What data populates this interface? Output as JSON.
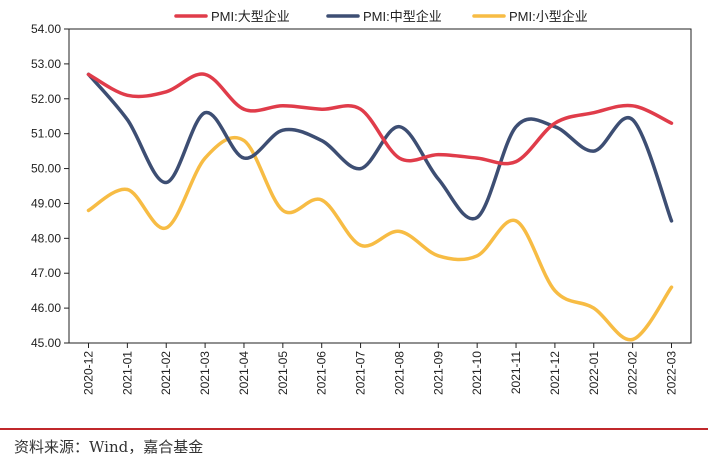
{
  "chart_data": {
    "type": "line",
    "title": "",
    "xlabel": "",
    "ylabel": "",
    "ylim": [
      45.0,
      54.0
    ],
    "y_ticks": [
      "45.00",
      "46.00",
      "47.00",
      "48.00",
      "49.00",
      "50.00",
      "51.00",
      "52.00",
      "53.00",
      "54.00"
    ],
    "y_tick_values": [
      45,
      46,
      47,
      48,
      49,
      50,
      51,
      52,
      53,
      54
    ],
    "categories": [
      "2020-12",
      "2021-01",
      "2021-02",
      "2021-03",
      "2021-04",
      "2021-05",
      "2021-06",
      "2021-07",
      "2021-08",
      "2021-09",
      "2021-10",
      "2021-11",
      "2021-12",
      "2022-01",
      "2022-02",
      "2022-03"
    ],
    "legend_position": "top",
    "series": [
      {
        "name": "PMI:大型企业",
        "color": "#e03c4a",
        "values": [
          52.7,
          52.1,
          52.2,
          52.7,
          51.7,
          51.8,
          51.7,
          51.7,
          50.3,
          50.4,
          50.3,
          50.2,
          51.3,
          51.6,
          51.8,
          51.3
        ]
      },
      {
        "name": "PMI:中型企业",
        "color": "#3d4e73",
        "values": [
          52.7,
          51.4,
          49.6,
          51.6,
          50.3,
          51.1,
          50.8,
          50.0,
          51.2,
          49.7,
          48.6,
          51.2,
          51.2,
          50.5,
          51.4,
          48.5
        ]
      },
      {
        "name": "PMI:小型企业",
        "color": "#f7bc44",
        "values": [
          48.8,
          49.4,
          48.3,
          50.3,
          50.8,
          48.8,
          49.1,
          47.8,
          48.2,
          47.5,
          47.5,
          48.5,
          46.5,
          46.0,
          45.1,
          46.6
        ]
      }
    ]
  },
  "source": "资料来源：Wind，嘉合基金"
}
